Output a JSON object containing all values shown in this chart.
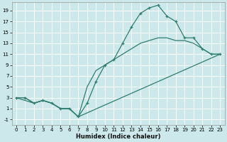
{
  "xlabel": "Humidex (Indice chaleur)",
  "bg_color": "#cce8eb",
  "grid_color": "#ffffff",
  "line_color": "#2e7d6e",
  "xlim": [
    -0.5,
    23.5
  ],
  "ylim": [
    -2,
    20.5
  ],
  "xticks": [
    0,
    1,
    2,
    3,
    4,
    5,
    6,
    7,
    8,
    9,
    10,
    11,
    12,
    13,
    14,
    15,
    16,
    17,
    18,
    19,
    20,
    21,
    22,
    23
  ],
  "yticks": [
    -1,
    1,
    3,
    5,
    7,
    9,
    11,
    13,
    15,
    17,
    19
  ],
  "curve1_x": [
    0,
    1,
    2,
    3,
    4,
    5,
    6,
    7,
    8,
    9,
    10,
    11,
    12,
    13,
    14,
    15,
    16,
    17,
    18,
    19,
    20,
    21,
    22,
    23
  ],
  "curve1_y": [
    3,
    3,
    2,
    2.5,
    2,
    1,
    1,
    -0.5,
    2,
    6,
    9,
    10,
    13,
    16,
    18.5,
    19.5,
    20,
    18,
    17,
    14,
    14,
    12,
    11,
    11
  ],
  "curve2_x": [
    0,
    1,
    2,
    3,
    4,
    5,
    6,
    7,
    8,
    9,
    10,
    11,
    12,
    13,
    14,
    15,
    16,
    17,
    18,
    19,
    20,
    21,
    22,
    23
  ],
  "curve2_y": [
    3,
    3,
    2,
    2.5,
    2,
    1,
    1,
    -0.5,
    5,
    8,
    9,
    10,
    11,
    12,
    13,
    13.5,
    14,
    14,
    13.5,
    13.5,
    13,
    12,
    11,
    11
  ],
  "curve3_x": [
    0,
    2,
    3,
    4,
    5,
    6,
    7,
    23
  ],
  "curve3_y": [
    3,
    2,
    2.5,
    2,
    1,
    1,
    -0.5,
    11
  ]
}
